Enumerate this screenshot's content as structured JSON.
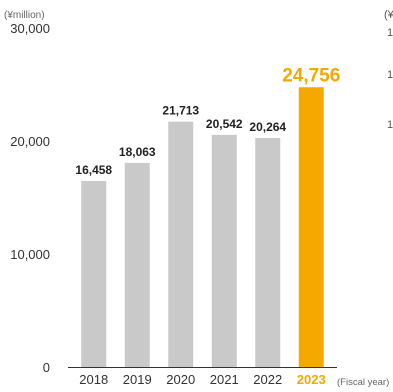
{
  "chart_data": {
    "type": "bar",
    "unit_label": "(¥million)",
    "xlabel": "(Fiscal year)",
    "ylabel": "",
    "ylim": [
      0,
      30000
    ],
    "yticks": [
      0,
      10000,
      20000,
      30000
    ],
    "ytick_labels": [
      "0",
      "10,000",
      "20,000",
      "30,000"
    ],
    "categories": [
      "2018",
      "2019",
      "2020",
      "2021",
      "2022",
      "2023"
    ],
    "values": [
      16458,
      18063,
      21713,
      20542,
      20264,
      24756
    ],
    "value_labels": [
      "16,458",
      "18,063",
      "21,713",
      "20,542",
      "20,264",
      "24,756"
    ],
    "highlight_index": 5,
    "colors": {
      "bar": "#c8c9c8",
      "highlight": "#f5a800",
      "axis": "#333333"
    },
    "grid": false,
    "clipped_right_text": [
      "(¥",
      "1",
      "1",
      "1"
    ]
  }
}
